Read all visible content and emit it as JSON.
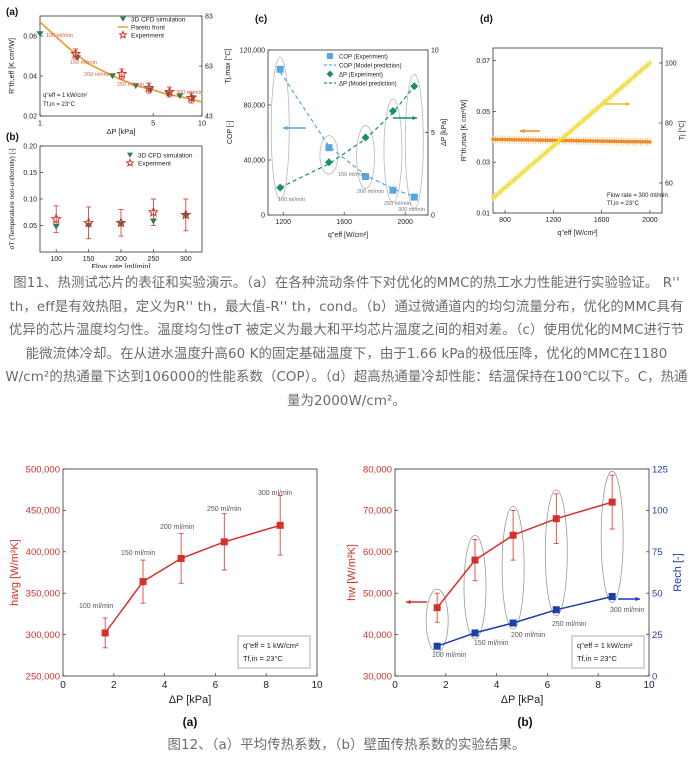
{
  "fig11": {
    "caption": "图11、热测试芯片的表征和实验演示。（a）在各种流动条件下对优化的MMC的热工水力性能进行实验验证。 R'' th，eff是有效热阻，定义为R'' th，最大值-R'' th，cond。（b）通过微通道内的均匀流量分布，优化的MMC具有优异的芯片温度均匀性。温度均匀性σT 被定义为最大和平均芯片温度之间的相对差。（c）使用优化的MMC进行节能微流体冷却。在从进水温度升高60 K的固定基础温度下，由于1.66 kPa的极低压降，优化的MMC在1180 W/cm²的热通量下达到106000的性能系数（COP）。（d）超高热通量冷却性能：结温保持在100℃以下。C，热通量为2000W/cm²。",
    "panel_a": {
      "label": "(a)",
      "legend": [
        "3D CFD simulation",
        "Pareto front",
        "Experiment"
      ],
      "xlabel": "ΔP [kPa]",
      "ylabel_left": "R''th,eff [K cm²/W]",
      "ylabel_right": "Tj,max [°C]",
      "xticks": [
        "1",
        "5",
        "10"
      ],
      "yticks_left": [
        "0.02",
        "0.04",
        "0.06"
      ],
      "yticks_right": [
        "43",
        "63",
        "83"
      ],
      "flow_labels": [
        "100 ml/min",
        "150 ml/min",
        "200 ml/min",
        "250 ml/min",
        "300 ml/min"
      ],
      "conditions": [
        "q''eff = 1 kW/cm²",
        "Tf,in = 23°C"
      ]
    },
    "panel_b": {
      "label": "(b)",
      "legend": [
        "3D CFD simulation",
        "Experiment"
      ],
      "xlabel": "Flow rate [ml/min]",
      "ylabel": "σT (Temperature non-uniformity) [-]",
      "xticks": [
        "100",
        "150",
        "200",
        "250",
        "300"
      ],
      "yticks": [
        "0.05",
        "0.10",
        "0.15",
        "0.20"
      ]
    },
    "panel_c": {
      "label": "(c)",
      "legend": [
        "COP (Experiment)",
        "COP (Model prediction)",
        "ΔP (Experiment)",
        "ΔP (Model prediction)"
      ],
      "xlabel": "q''eff [W/cm²]",
      "ylabel_left": "COP [-]",
      "ylabel_right": "ΔP [kPa]",
      "xticks": [
        "1200",
        "1600",
        "2000"
      ],
      "yticks_left": [
        "0",
        "40,000",
        "80,000",
        "120,000"
      ],
      "yticks_right": [
        "0",
        "5",
        "10"
      ],
      "flow_labels": [
        "100 ml/min",
        "150 ml/min",
        "200 ml/min",
        "250 ml/min",
        "300 ml/min"
      ]
    },
    "panel_d": {
      "label": "(d)",
      "xlabel": "q''eff [W/cm²]",
      "ylabel_left": "R''th,max [K cm²/W]",
      "ylabel_right": "Tj [°C]",
      "xticks": [
        "800",
        "1200",
        "1600",
        "2000"
      ],
      "yticks_left": [
        "0.01",
        "0.03",
        "0.05",
        "0.07"
      ],
      "yticks_right": [
        "60",
        "80",
        "100"
      ],
      "conditions": [
        "Flow rate = 300 ml/min",
        "Tf,in = 23°C"
      ]
    }
  },
  "fig12": {
    "caption": "图12、（a）平均传热系数，（b）壁面传热系数的实验结果。",
    "panel_a": {
      "label": "(a)"
    },
    "panel_b": {
      "label": "(b)"
    }
  },
  "chart_data": [
    {
      "id": "fig11a",
      "type": "scatter",
      "xscale": "log",
      "xlabel": "ΔP [kPa]",
      "ylabel": "R''th,eff [K cm²/W]",
      "y2label": "Tj,max [°C]",
      "xlim": [
        1,
        10
      ],
      "ylim": [
        0.02,
        0.07
      ],
      "y2lim": [
        43,
        83
      ],
      "series": [
        {
          "name": "3D CFD simulation",
          "x": [
            1.0,
            1.7,
            2.8,
            3.9,
            4.8,
            6.2,
            7.3,
            8.8
          ],
          "y": [
            0.061,
            0.049,
            0.04,
            0.035,
            0.033,
            0.031,
            0.03,
            0.029
          ]
        },
        {
          "name": "Pareto front",
          "x": [
            1.0,
            1.5,
            2.0,
            3.0,
            4.0,
            5.0,
            6.0,
            7.0,
            8.0,
            9.0,
            10.0
          ],
          "y": [
            0.067,
            0.054,
            0.046,
            0.039,
            0.035,
            0.033,
            0.031,
            0.03,
            0.029,
            0.028,
            0.027
          ]
        },
        {
          "name": "Experiment",
          "x": [
            1.66,
            3.2,
            4.7,
            6.3,
            8.6
          ],
          "y": [
            0.051,
            0.041,
            0.034,
            0.032,
            0.029
          ]
        }
      ]
    },
    {
      "id": "fig11b",
      "type": "scatter",
      "xlabel": "Flow rate [ml/min]",
      "ylabel": "σT (Temperature non-uniformity) [-]",
      "xlim": [
        75,
        325
      ],
      "ylim": [
        0,
        0.2
      ],
      "series": [
        {
          "name": "3D CFD simulation",
          "x": [
            100,
            150,
            200,
            250,
            300
          ],
          "y": [
            0.048,
            0.05,
            0.052,
            0.058,
            0.068
          ]
        },
        {
          "name": "Experiment",
          "x": [
            100,
            150,
            200,
            250,
            300
          ],
          "y": [
            0.062,
            0.055,
            0.055,
            0.075,
            0.07
          ],
          "err": [
            0.025,
            0.03,
            0.025,
            0.025,
            0.03
          ]
        }
      ]
    },
    {
      "id": "fig11c",
      "type": "line",
      "xlabel": "q''eff [W/cm²]",
      "ylabel": "COP [-]",
      "y2label": "ΔP [kPa]",
      "xlim": [
        1100,
        2150
      ],
      "ylim": [
        0,
        120000
      ],
      "y2lim": [
        0,
        10
      ],
      "series": [
        {
          "name": "COP (Experiment)",
          "x": [
            1180,
            1500,
            1740,
            1920,
            2060
          ],
          "y": [
            106000,
            49000,
            28000,
            18000,
            13000
          ]
        },
        {
          "name": "COP (Model prediction)",
          "x": [
            1180,
            1500,
            1740,
            1920,
            2060
          ],
          "y": [
            104000,
            50000,
            29000,
            19000,
            13500
          ]
        },
        {
          "name": "ΔP (Experiment)",
          "x": [
            1180,
            1500,
            1740,
            1920,
            2060
          ],
          "y": [
            1.66,
            3.2,
            4.7,
            6.3,
            7.8
          ]
        },
        {
          "name": "ΔP (Model prediction)",
          "x": [
            1180,
            1500,
            1740,
            1920,
            2060
          ],
          "y": [
            1.66,
            3.1,
            4.6,
            6.2,
            7.8
          ]
        }
      ]
    },
    {
      "id": "fig11d",
      "type": "scatter",
      "xlabel": "q''eff [W/cm²]",
      "ylabel": "R''th,max [K cm²/W]",
      "y2label": "Tj [°C]",
      "xlim": [
        700,
        2100
      ],
      "ylim": [
        0.01,
        0.075
      ],
      "y2lim": [
        50,
        105
      ],
      "series": [
        {
          "name": "R''th,max",
          "x": [
            700,
            2000
          ],
          "y": [
            0.039,
            0.038
          ]
        },
        {
          "name": "Tj",
          "x": [
            700,
            2000
          ],
          "y": [
            55,
            100
          ]
        }
      ]
    },
    {
      "id": "fig12a",
      "type": "line",
      "xlabel": "ΔP [kPa]",
      "ylabel": "havg [W/m²K]",
      "xlim": [
        0,
        10
      ],
      "ylim": [
        250000,
        500000
      ],
      "xticks": [
        "0",
        "2",
        "4",
        "6",
        "8",
        "10"
      ],
      "yticks": [
        "250,000",
        "300,000",
        "350,000",
        "400,000",
        "450,000",
        "500,000"
      ],
      "series": [
        {
          "x": [
            1.66,
            3.15,
            4.65,
            6.35,
            8.55
          ],
          "y": [
            302000,
            364000,
            392000,
            412000,
            432000
          ],
          "err": [
            18000,
            26000,
            30000,
            34000,
            36000
          ]
        }
      ],
      "point_labels": [
        "100 ml/min",
        "150 ml/min",
        "200 ml/min",
        "250 ml/min",
        "300 ml/min"
      ],
      "annotations": [
        "q''eff = 1 kW/cm²",
        "Tf,in = 23°C"
      ]
    },
    {
      "id": "fig12b",
      "type": "line",
      "xlabel": "ΔP [kPa]",
      "ylabel": "hw [W/m²K]",
      "y2label": "Rech [-]",
      "xlim": [
        0,
        10
      ],
      "ylim": [
        30000,
        80000
      ],
      "y2lim": [
        0,
        125
      ],
      "xticks": [
        "0",
        "2",
        "4",
        "6",
        "8",
        "10"
      ],
      "yticks": [
        "30,000",
        "40,000",
        "50,000",
        "60,000",
        "70,000",
        "80,000"
      ],
      "y2ticks": [
        "0",
        "25",
        "50",
        "75",
        "100",
        "125"
      ],
      "series": [
        {
          "name": "hw",
          "x": [
            1.66,
            3.15,
            4.65,
            6.35,
            8.55
          ],
          "y": [
            46500,
            58000,
            64000,
            68000,
            72000
          ],
          "err": [
            3500,
            5000,
            6000,
            6000,
            6500
          ]
        },
        {
          "name": "Rech",
          "x": [
            1.66,
            3.15,
            4.65,
            6.35,
            8.55
          ],
          "y": [
            18,
            26,
            32,
            40,
            48
          ]
        }
      ],
      "point_labels": [
        "100 ml/min",
        "150 ml/min",
        "200 ml/min",
        "250 ml/min",
        "300 ml/min"
      ],
      "annotations": [
        "q''eff = 1 kW/cm²",
        "Tf,in = 23°C"
      ]
    }
  ]
}
